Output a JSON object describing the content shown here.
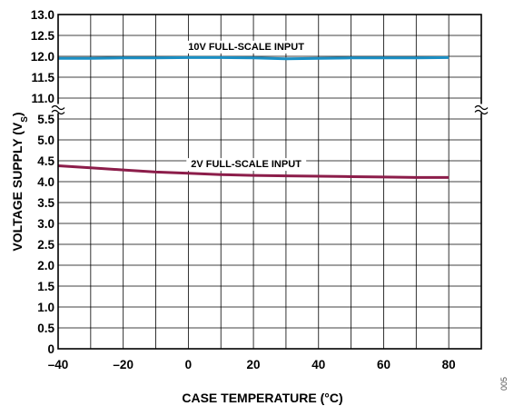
{
  "chart_data": {
    "type": "line",
    "title": "",
    "xlabel": "CASE TEMPERATURE (°C)",
    "ylabel": "VOLTAGE SUPPLY (V",
    "ylabel_sub": "S",
    "ylabel_end": ")",
    "figure_id": "005",
    "grid": true,
    "xlim": [
      -40,
      90
    ],
    "x_ticks": [
      -40,
      -20,
      0,
      20,
      40,
      60,
      80
    ],
    "x_tick_labels": [
      "–40",
      "–20",
      "0",
      "20",
      "40",
      "60",
      "80"
    ],
    "y_axis_break": {
      "lower_range": [
        0,
        5.5
      ],
      "upper_range": [
        11.0,
        13.0
      ]
    },
    "y_tick_labels_upper": [
      "13.0",
      "12.5",
      "12.0",
      "11.5",
      "11.0"
    ],
    "y_tick_labels_lower": [
      "5.5",
      "5.0",
      "4.5",
      "4.0",
      "3.5",
      "3.0",
      "2.5",
      "2.0",
      "1.5",
      "1.0",
      "0.5",
      "0"
    ],
    "x": [
      -40,
      -30,
      -20,
      -10,
      0,
      10,
      20,
      30,
      40,
      50,
      60,
      70,
      80
    ],
    "series": [
      {
        "name": "10V FULL-SCALE INPUT",
        "color": "#1b8fc4",
        "values": [
          11.95,
          11.95,
          11.96,
          11.96,
          11.97,
          11.97,
          11.96,
          11.94,
          11.95,
          11.96,
          11.96,
          11.96,
          11.97
        ]
      },
      {
        "name": "2V FULL-SCALE INPUT",
        "color": "#8c1d4a",
        "values": [
          4.38,
          4.33,
          4.28,
          4.23,
          4.2,
          4.17,
          4.15,
          4.14,
          4.13,
          4.12,
          4.11,
          4.1,
          4.1
        ]
      }
    ]
  }
}
